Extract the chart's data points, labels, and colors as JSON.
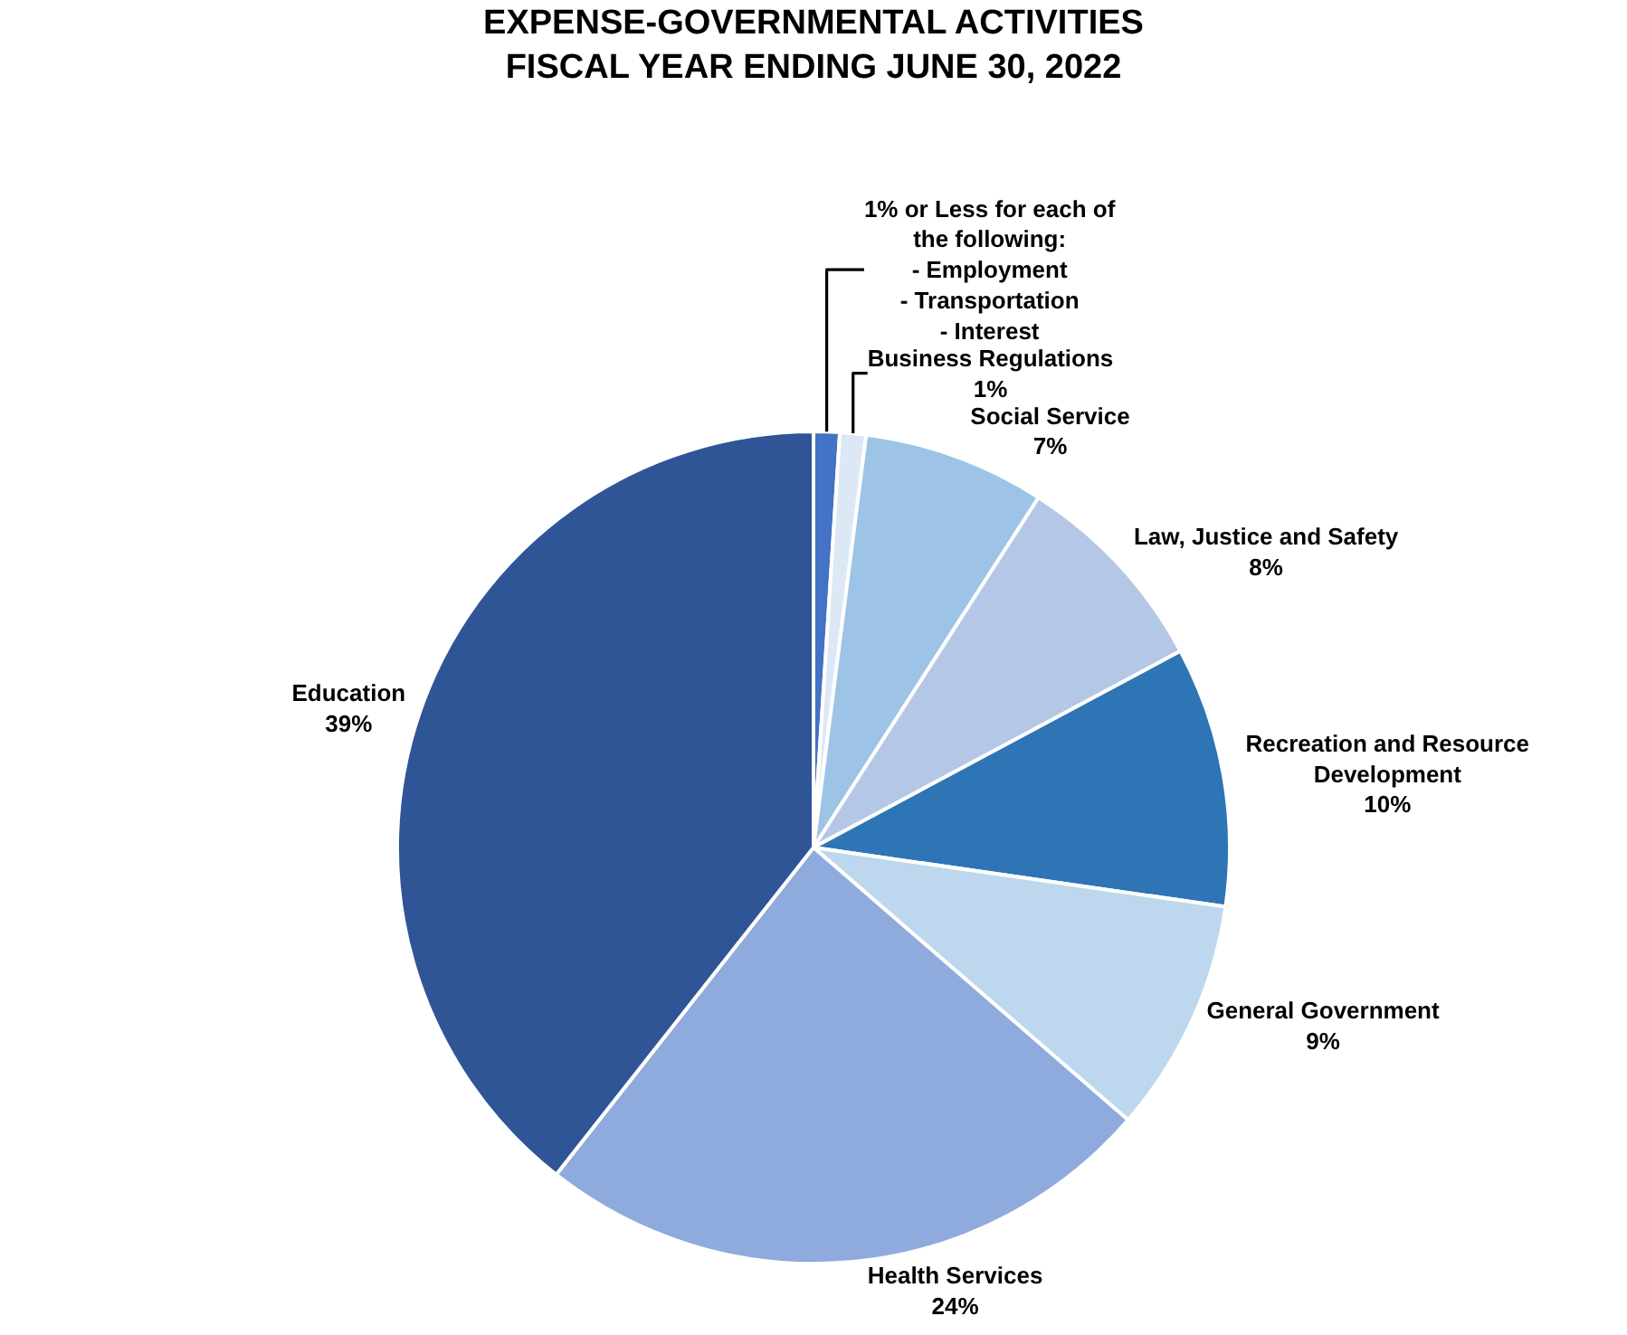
{
  "chart_data": {
    "type": "pie",
    "title": "EXPENSE-GOVERNMENTAL ACTIVITIES\nFISCAL YEAR ENDING JUNE 30, 2022",
    "categories": [
      "1% or Less for each of the following:\n- Employment\n- Transportation\n- Interest",
      "Business Regulations",
      "Social Service",
      "Law, Justice and Safety",
      "Recreation and Resource Development",
      "General Government",
      "Health Services",
      "Education"
    ],
    "values": [
      1,
      1,
      7,
      8,
      10,
      9,
      24,
      39
    ],
    "value_labels": [
      null,
      "1%",
      "7%",
      "8%",
      "10%",
      "9%",
      "24%",
      "39%"
    ],
    "colors": [
      "#4472c4",
      "#dde8f6",
      "#9dc3e6",
      "#b4c7e7",
      "#2e75b6",
      "#bdd7ee",
      "#8faadc",
      "#2f5597"
    ],
    "legend": false
  }
}
